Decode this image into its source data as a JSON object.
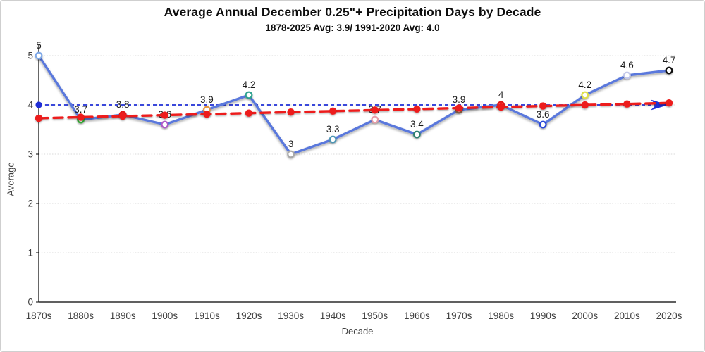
{
  "window": {
    "background": "#ffffff",
    "border_color": "#cfcfcf"
  },
  "chart_data": {
    "type": "line",
    "title": "Average Annual December 0.25\"+ Precipitation Days by Decade",
    "subtitle": "1878-2025 Avg: 3.9/ 1991-2020 Avg: 4.0",
    "xlabel": "Decade",
    "ylabel": "Average",
    "ylim": [
      0,
      5
    ],
    "yticks": [
      "0",
      "1",
      "2",
      "3",
      "4",
      "5"
    ],
    "grid": "horizontal-dotted",
    "grid_color": "#d9d9d9",
    "axis_color": "#000000",
    "tick_label_color": "#3f3f3f",
    "data_label_color": "#1a1a1a",
    "categories": [
      "1870s",
      "1880s",
      "1890s",
      "1900s",
      "1910s",
      "1920s",
      "1930s",
      "1940s",
      "1950s",
      "1960s",
      "1970s",
      "1980s",
      "1990s",
      "2000s",
      "2010s",
      "2020s"
    ],
    "series": [
      {
        "name": "average-december-precip-days",
        "type": "line",
        "color": "#5a78dc",
        "values": [
          5,
          3.7,
          3.8,
          3.6,
          3.9,
          4.2,
          3,
          3.3,
          3.7,
          3.4,
          3.9,
          4,
          3.6,
          4.2,
          4.6,
          4.7
        ],
        "labels": [
          "5",
          "3.7",
          "3.8",
          "3.6",
          "3.9",
          "4.2",
          "3",
          "3.3",
          "3.7",
          "3.4",
          "3.9",
          "4",
          "3.6",
          "4.2",
          "4.6",
          "4.7"
        ],
        "marker_fill": "#ffffff",
        "marker_colors": [
          "#7fa9e8",
          "#33ad33",
          "#e01414",
          "#ae58c8",
          "#e8973c",
          "#2fa290",
          "#a8a8a8",
          "#4e96b4",
          "#e89ca8",
          "#2f7f70",
          "#96603f",
          "#e01414",
          "#2b48d8",
          "#dfdf4c",
          "#c3c8ea",
          "#111111"
        ]
      }
    ],
    "trend_line": {
      "name": "linear-trend",
      "style": "dashed",
      "color": "#ed1c1c",
      "start_value": 3.73,
      "end_value": 4.04,
      "point_markers_at_each_decade": true
    },
    "reference_line": {
      "name": "1991-2020-average",
      "style": "dashed",
      "color": "#1f2ed6",
      "value": 4.0,
      "start_dot": true,
      "arrow_end": true
    },
    "legend": "none"
  }
}
